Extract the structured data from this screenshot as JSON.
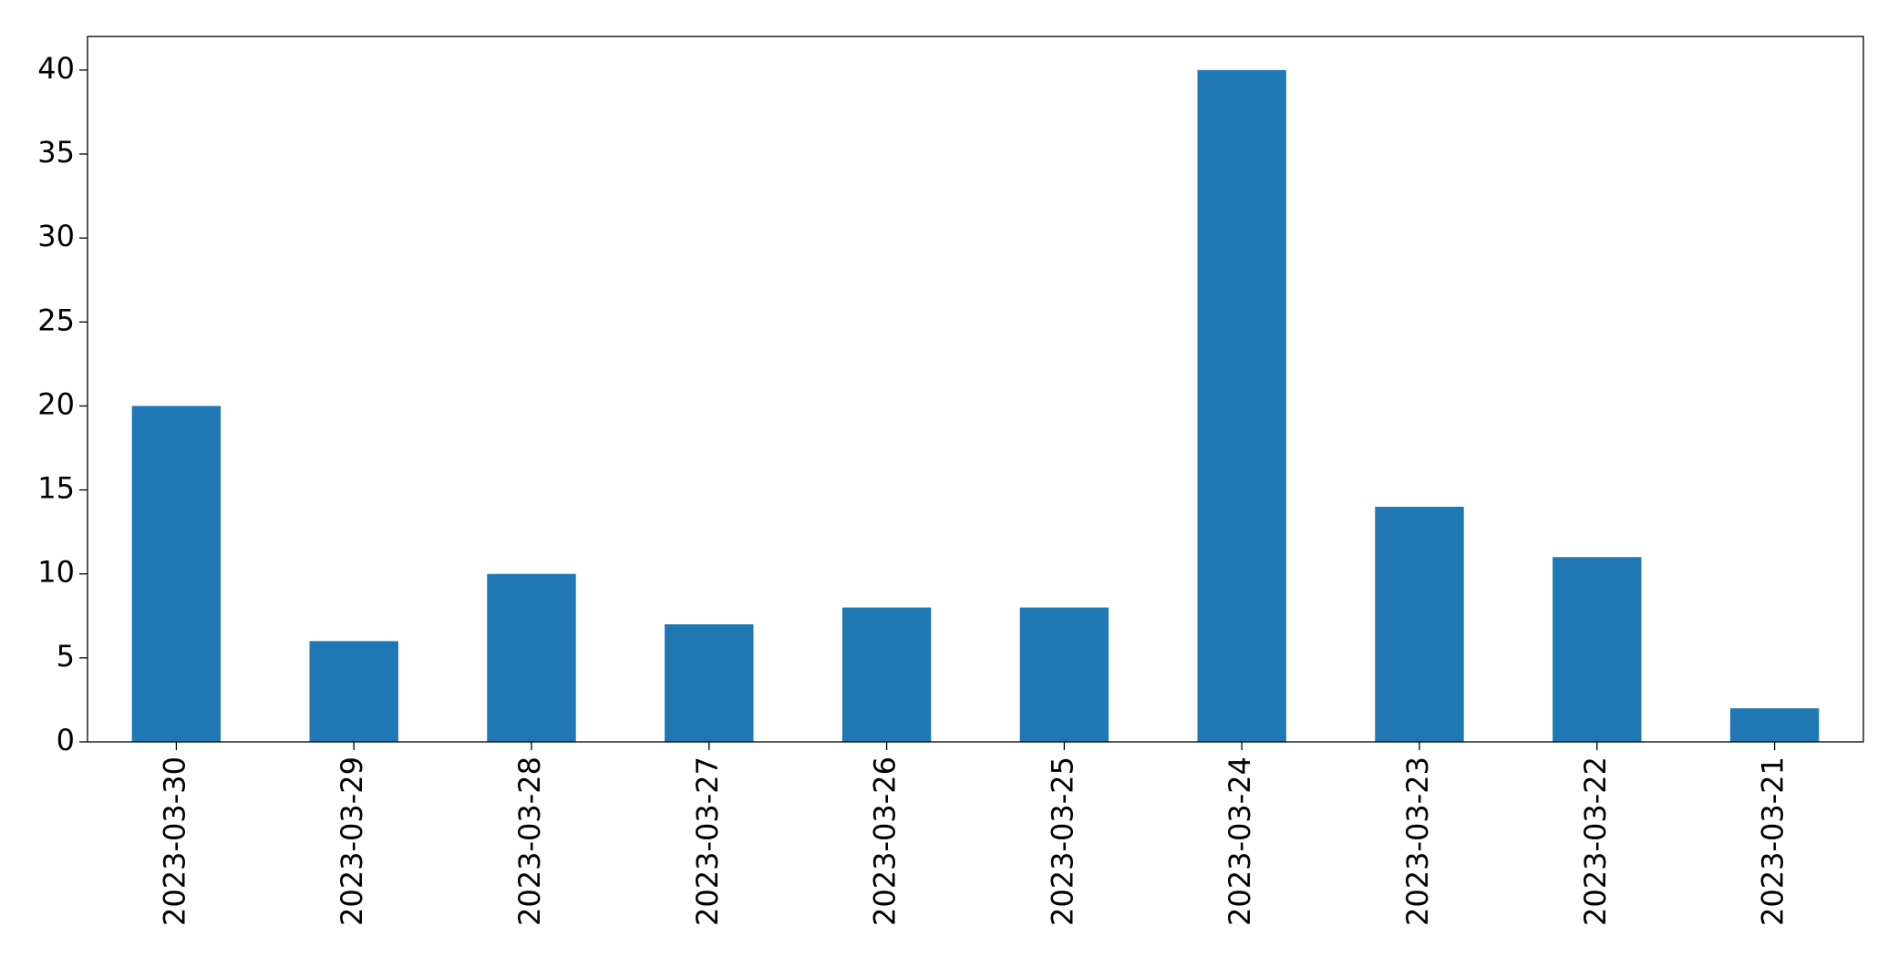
{
  "chart_data": {
    "type": "bar",
    "categories": [
      "2023-03-30",
      "2023-03-29",
      "2023-03-28",
      "2023-03-27",
      "2023-03-26",
      "2023-03-25",
      "2023-03-24",
      "2023-03-23",
      "2023-03-22",
      "2023-03-21"
    ],
    "values": [
      20,
      6,
      10,
      7,
      8,
      8,
      40,
      14,
      11,
      2
    ],
    "color": "#1f77b4",
    "ylim": [
      0,
      42
    ],
    "yticks": [
      0,
      5,
      10,
      15,
      20,
      25,
      30,
      35,
      40
    ],
    "grid": false
  }
}
